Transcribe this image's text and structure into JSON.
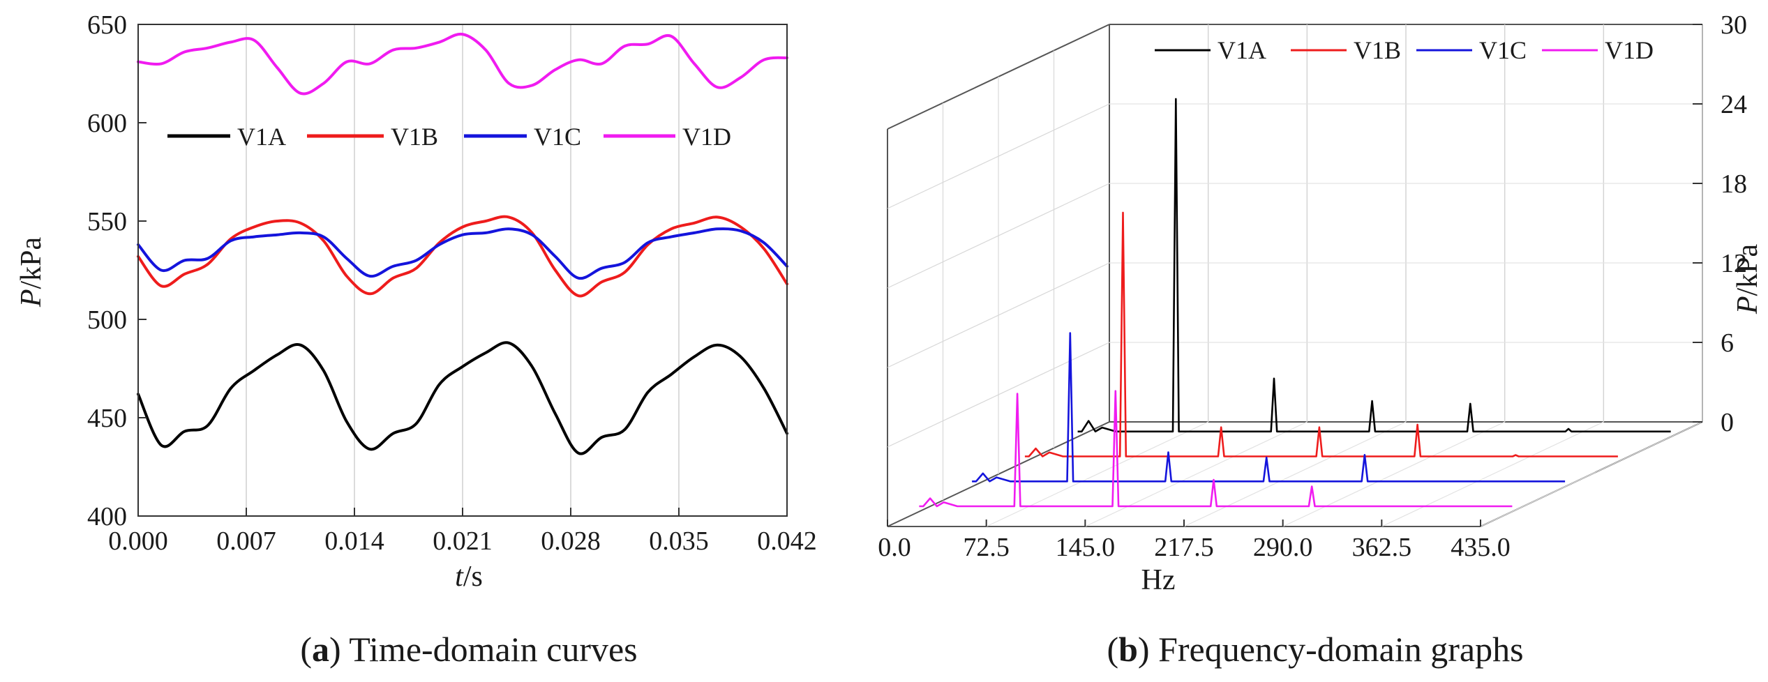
{
  "chart_data": [
    {
      "panel": "a",
      "type": "line",
      "caption_letter": "a",
      "caption_text": "Time-domain curves",
      "xlabel_italic": "t",
      "xlabel_unit": "/s",
      "ylabel_italic": "P",
      "ylabel_unit": "/kPa",
      "xlim": [
        0,
        0.042
      ],
      "ylim": [
        400,
        650
      ],
      "x_tick_labels": [
        "0.000",
        "0.007",
        "0.014",
        "0.021",
        "0.028",
        "0.035",
        "0.042"
      ],
      "y_tick_labels": [
        "400",
        "450",
        "500",
        "550",
        "600",
        "650"
      ],
      "x": [
        0,
        0.0015,
        0.003,
        0.0045,
        0.006,
        0.0075,
        0.009,
        0.0105,
        0.012,
        0.0135,
        0.015,
        0.0165,
        0.018,
        0.0195,
        0.021,
        0.0225,
        0.024,
        0.0255,
        0.027,
        0.0285,
        0.03,
        0.0315,
        0.033,
        0.0345,
        0.036,
        0.0375,
        0.039,
        0.0405,
        0.042
      ],
      "series": [
        {
          "name": "V1A",
          "color": "#000000",
          "values": [
            462,
            436,
            443,
            446,
            465,
            474,
            482,
            487,
            474,
            448,
            434,
            442,
            447,
            467,
            476,
            483,
            488,
            476,
            452,
            432,
            440,
            444,
            463,
            472,
            481,
            487,
            481,
            465,
            442
          ]
        },
        {
          "name": "V1B",
          "color": "#ee1c1c",
          "values": [
            532,
            517,
            523,
            528,
            541,
            547,
            550,
            549,
            540,
            522,
            513,
            521,
            526,
            539,
            547,
            550,
            552,
            544,
            525,
            512,
            519,
            524,
            538,
            546,
            549,
            552,
            547,
            536,
            518
          ]
        },
        {
          "name": "V1C",
          "color": "#1414dc",
          "values": [
            538,
            525,
            530,
            531,
            540,
            542,
            543,
            544,
            542,
            531,
            522,
            527,
            530,
            538,
            543,
            544,
            546,
            543,
            532,
            521,
            526,
            529,
            539,
            542,
            544,
            546,
            545,
            539,
            527
          ]
        },
        {
          "name": "V1D",
          "color": "#f01bf0",
          "values": [
            631,
            630,
            636,
            638,
            641,
            642,
            628,
            615,
            620,
            631,
            630,
            637,
            638,
            641,
            645,
            637,
            620,
            619,
            627,
            632,
            630,
            639,
            640,
            644,
            630,
            618,
            623,
            632,
            633
          ]
        }
      ]
    },
    {
      "panel": "b",
      "type": "line",
      "caption_letter": "b",
      "caption_text": "Frequency-domain graphs",
      "xlabel": "Hz",
      "ylabel_italic": "P",
      "ylabel_unit": "/kPa",
      "xlim": [
        0,
        435
      ],
      "ylim": [
        0,
        30
      ],
      "x_tick_labels": [
        "0.0",
        "72.5",
        "145.0",
        "217.5",
        "290.0",
        "362.5",
        "435.0"
      ],
      "z_tick_labels": [
        "0",
        "6",
        "12",
        "18",
        "24",
        "30"
      ],
      "series": [
        {
          "name": "V1A",
          "color": "#000000",
          "baseline": 0.4,
          "peaks": [
            [
              8,
              1.2
            ],
            [
              72,
              25.5
            ],
            [
              144,
              4.4
            ],
            [
              216,
              2.7
            ],
            [
              288,
              2.5
            ],
            [
              360,
              0.6
            ]
          ]
        },
        {
          "name": "V1B",
          "color": "#ee1c1c",
          "baseline": 0.4,
          "peaks": [
            [
              8,
              1.0
            ],
            [
              72,
              18.8
            ],
            [
              144,
              2.6
            ],
            [
              216,
              2.6
            ],
            [
              288,
              2.8
            ],
            [
              360,
              0.5
            ]
          ]
        },
        {
          "name": "V1C",
          "color": "#1414dc",
          "baseline": 0.4,
          "peaks": [
            [
              8,
              1.0
            ],
            [
              72,
              11.6
            ],
            [
              144,
              2.6
            ],
            [
              216,
              2.2
            ],
            [
              288,
              2.4
            ],
            [
              360,
              0.4
            ]
          ]
        },
        {
          "name": "V1D",
          "color": "#f01bf0",
          "baseline": 0.4,
          "peaks": [
            [
              8,
              1.0
            ],
            [
              72,
              8.9
            ],
            [
              144,
              9.1
            ],
            [
              216,
              2.4
            ],
            [
              288,
              1.9
            ],
            [
              360,
              0.4
            ]
          ]
        }
      ]
    }
  ]
}
